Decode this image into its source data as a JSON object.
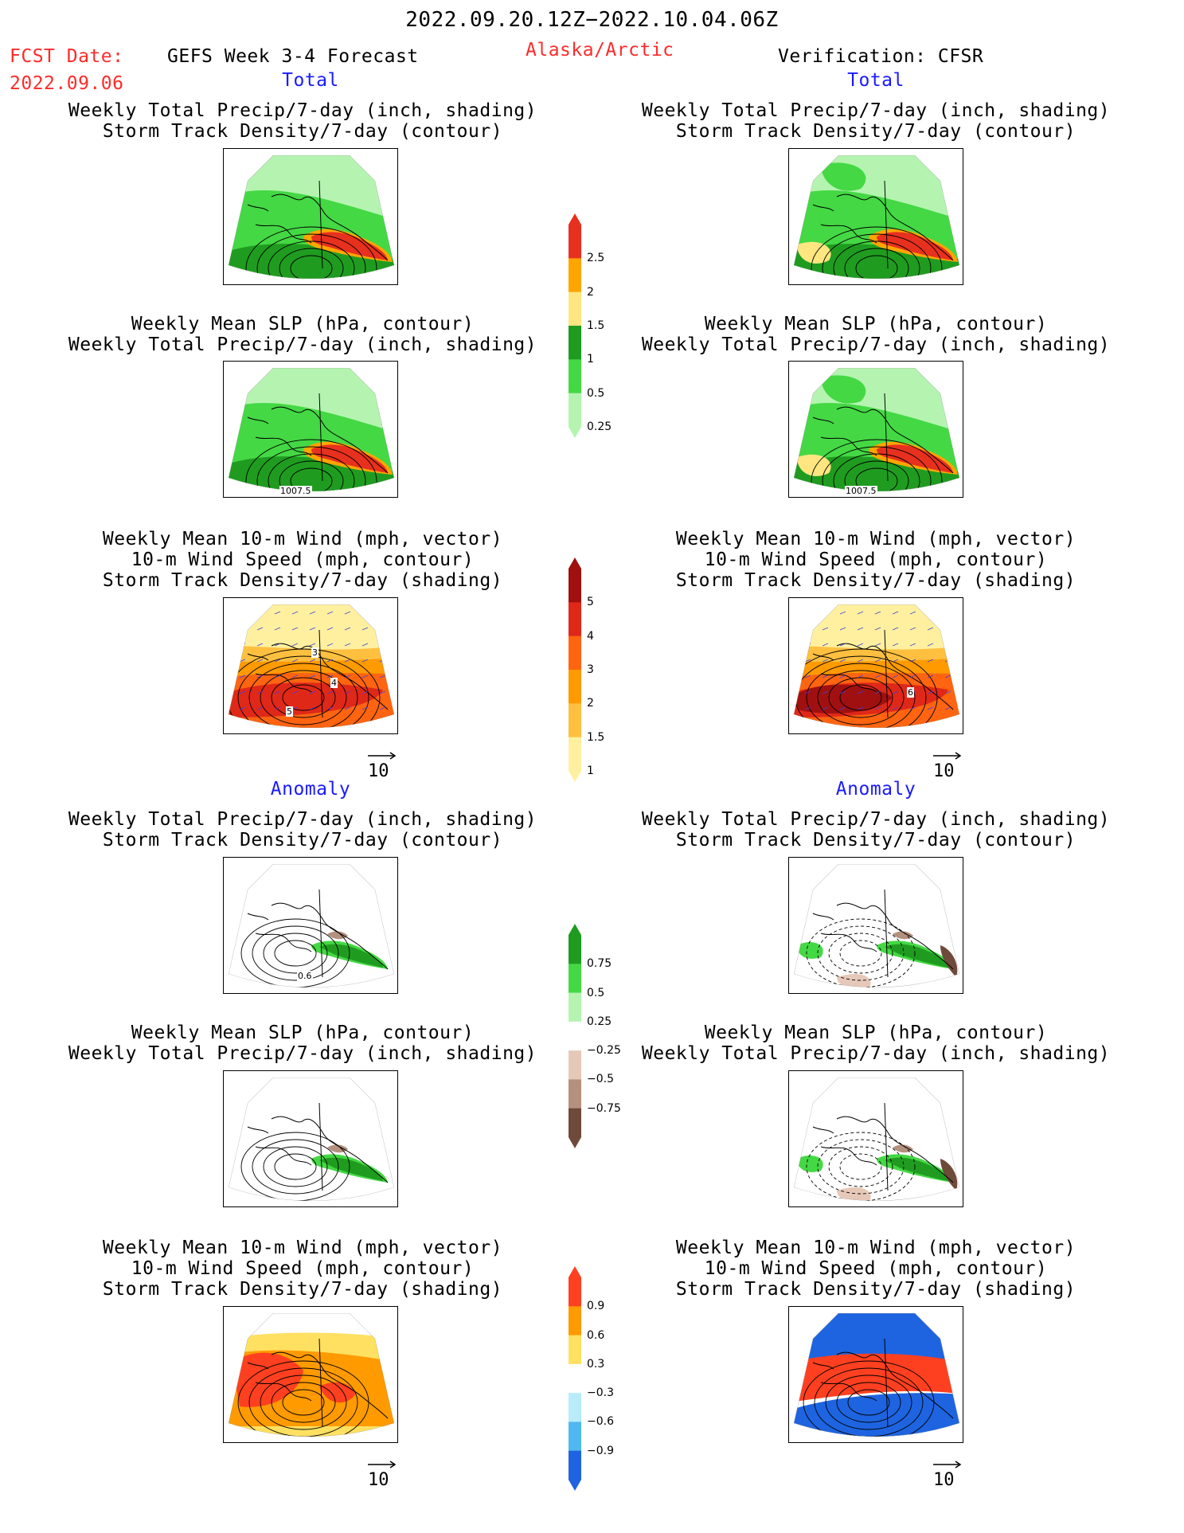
{
  "header": {
    "period": "2022.09.20.12Z−2022.10.04.06Z",
    "fcst_label": "FCST Date:",
    "fcst_date": "2022.09.06",
    "model": "GEFS Week 3-4 Forecast",
    "region": "Alaska/Arctic",
    "verification": "Verification: CFSR"
  },
  "sections": {
    "total": "Total",
    "anomaly": "Anomaly"
  },
  "titles": {
    "precip_track": [
      "Weekly Total Precip/7-day (inch, shading)",
      "Storm Track Density/7-day (contour)"
    ],
    "slp_precip": [
      "Weekly Mean SLP (hPa, contour)",
      "Weekly Total Precip/7-day (inch, shading)"
    ],
    "wind_track": [
      "Weekly Mean 10-m Wind (mph, vector)",
      "10-m Wind Speed (mph, contour)",
      "Storm Track Density/7-day (shading)"
    ]
  },
  "map_labels": {
    "slp_total": "1007.5",
    "anom_contour": "0.6",
    "wind_fcst_a": "3",
    "wind_fcst_b": "4",
    "wind_fcst_c": "5",
    "wind_verif": "6"
  },
  "vector_scale": "10",
  "colorbars": {
    "precip_total": {
      "labels": [
        "2.5",
        "2",
        "1.5",
        "1",
        "0.5",
        "0.25"
      ],
      "colors": [
        "#e8301e",
        "#ffa500",
        "#ffe680",
        "#1f9c1f",
        "#44d844",
        "#b4f4b0"
      ]
    },
    "track_total": {
      "labels": [
        "5",
        "4",
        "3",
        "2",
        "1.5",
        "1"
      ],
      "colors": [
        "#a01010",
        "#e02818",
        "#ff6410",
        "#ff9a00",
        "#ffc040",
        "#fff0a0"
      ]
    },
    "precip_anom": {
      "labels": [
        "0.75",
        "0.5",
        "0.25",
        "−0.25",
        "−0.5",
        "−0.75"
      ],
      "colors": [
        "#1f9c1f",
        "#44d844",
        "#b4f4b0",
        "#ffffff",
        "#e6c8b8",
        "#b4907e",
        "#6e4a3a"
      ]
    },
    "track_anom": {
      "labels": [
        "0.9",
        "0.6",
        "0.3",
        "−0.3",
        "−0.6",
        "−0.9"
      ],
      "colors": [
        "#ff4020",
        "#ff9a00",
        "#ffe060",
        "#ffffff",
        "#b8ecf8",
        "#50b8f0",
        "#1e64e0"
      ]
    }
  }
}
